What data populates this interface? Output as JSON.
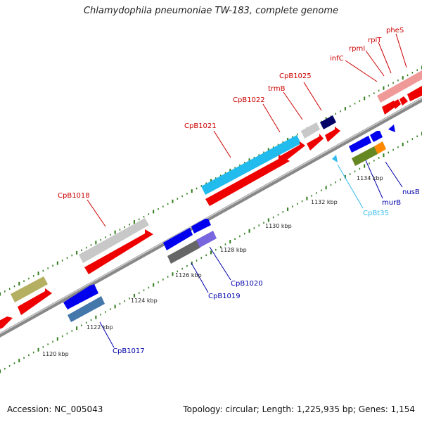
{
  "title": "Chlamydophila pneumoniae TW-183, complete genome",
  "footer": {
    "accession": "Accession: NC_005043",
    "topology": "Topology: circular; Length: 1,225,935 bp; Genes: 1,154"
  },
  "colors": {
    "red_label": "#cc0000",
    "blue_label": "#0000aa",
    "cyan_label": "#33bbee",
    "backbone": "#888888",
    "tick": "#2e7d1a"
  },
  "scale_labels": [
    "1120 kbp",
    "1122 kbp",
    "1124 kbp",
    "1126 kbp",
    "1128 kbp",
    "1130 kbp",
    "1132 kbp",
    "1134 kbp"
  ],
  "gene_labels": [
    {
      "id": "CpB1018",
      "text": "CpB1018",
      "strand": "forward"
    },
    {
      "id": "CpB1021",
      "text": "CpB1021",
      "strand": "forward"
    },
    {
      "id": "CpB1022",
      "text": "CpB1022",
      "strand": "forward"
    },
    {
      "id": "trmB",
      "text": "trmB",
      "strand": "forward"
    },
    {
      "id": "CpB1025",
      "text": "CpB1025",
      "strand": "forward"
    },
    {
      "id": "infC",
      "text": "infC",
      "strand": "forward"
    },
    {
      "id": "rpmI",
      "text": "rpmI",
      "strand": "forward"
    },
    {
      "id": "rplT",
      "text": "rplT",
      "strand": "forward"
    },
    {
      "id": "pheS",
      "text": "pheS",
      "strand": "forward"
    },
    {
      "id": "CpB1017",
      "text": "CpB1017",
      "strand": "reverse"
    },
    {
      "id": "CpB1019",
      "text": "CpB1019",
      "strand": "reverse"
    },
    {
      "id": "CpB1020",
      "text": "CpB1020",
      "strand": "reverse"
    },
    {
      "id": "CpBt35",
      "text": "CpBt35",
      "strand": "reverse"
    },
    {
      "id": "murB",
      "text": "murB",
      "strand": "reverse"
    },
    {
      "id": "nusB",
      "text": "nusB",
      "strand": "reverse"
    }
  ]
}
